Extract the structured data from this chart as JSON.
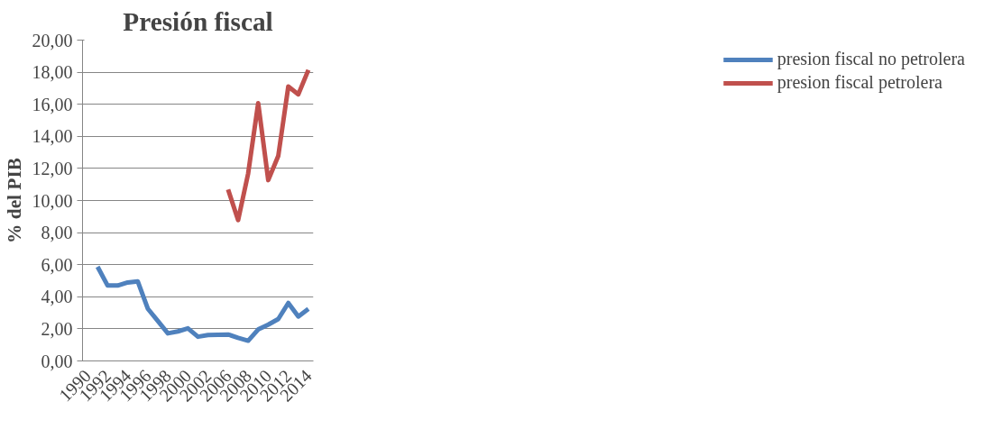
{
  "chart_data": {
    "type": "line",
    "title": "Presión fiscal",
    "ylabel": "% del PIB",
    "categories": [
      "1990",
      null,
      "1992",
      null,
      "1994",
      null,
      "1996",
      null,
      "1998",
      null,
      "2000",
      null,
      "2002",
      null,
      "2006",
      null,
      "2008",
      null,
      "2010",
      null,
      "2012",
      null,
      "2014"
    ],
    "series": [
      {
        "name": "presion fiscal no petrolera",
        "color": "#4f81bd",
        "values": [
          null,
          5.87,
          4.7,
          4.7,
          4.89,
          4.96,
          3.26,
          2.49,
          1.72,
          1.84,
          2.03,
          1.51,
          1.61,
          1.63,
          1.65,
          1.44,
          1.26,
          1.96,
          2.26,
          2.61,
          3.61,
          2.77,
          3.24
        ]
      },
      {
        "name": "presion fiscal petrolera",
        "color": "#c0504d",
        "values": [
          null,
          null,
          null,
          null,
          null,
          null,
          null,
          null,
          null,
          null,
          null,
          null,
          null,
          null,
          10.69,
          8.78,
          11.69,
          16.07,
          11.27,
          12.78,
          17.11,
          16.62,
          18.14
        ]
      }
    ],
    "ylim": [
      0,
      20
    ],
    "yticks": [
      {
        "value": 0,
        "label": "0,00"
      },
      {
        "value": 2,
        "label": "2,00"
      },
      {
        "value": 4,
        "label": "4,00"
      },
      {
        "value": 6,
        "label": "6,00"
      },
      {
        "value": 8,
        "label": "8,00"
      },
      {
        "value": 10,
        "label": "10,00"
      },
      {
        "value": 12,
        "label": "12,00"
      },
      {
        "value": 14,
        "label": "14,00"
      },
      {
        "value": 16,
        "label": "16,00"
      },
      {
        "value": 18,
        "label": "18,00"
      },
      {
        "value": 20,
        "label": "20,00"
      }
    ],
    "grid": "y",
    "legend": "right",
    "marker": "none",
    "line_style": "solid"
  }
}
